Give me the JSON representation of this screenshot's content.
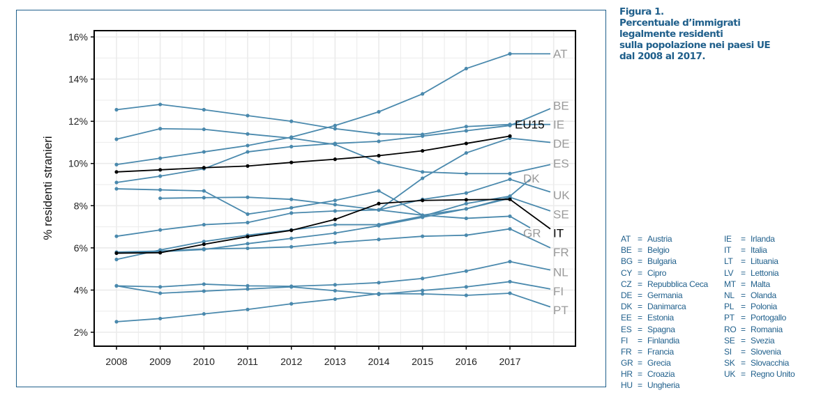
{
  "caption": {
    "lines": [
      "Figura 1.",
      "Percentuale d’immigrati",
      "legalmente residenti",
      "sulla popolazione nei paesi UE",
      "dal 2008 al 2017."
    ]
  },
  "legend": {
    "col1": [
      {
        "code": "AT",
        "name": "Austria"
      },
      {
        "code": "BE",
        "name": "Belgio"
      },
      {
        "code": "BG",
        "name": "Bulgaria"
      },
      {
        "code": "CY",
        "name": "Cipro"
      },
      {
        "code": "CZ",
        "name": "Repubblica Ceca"
      },
      {
        "code": "DE",
        "name": "Germania"
      },
      {
        "code": "DK",
        "name": "Danimarca"
      },
      {
        "code": "EE",
        "name": "Estonia"
      },
      {
        "code": "ES",
        "name": "Spagna"
      },
      {
        "code": "FI",
        "name": "Finlandia"
      },
      {
        "code": "FR",
        "name": "Francia"
      },
      {
        "code": "GR",
        "name": "Grecia"
      },
      {
        "code": "HR",
        "name": "Croazia"
      },
      {
        "code": "HU",
        "name": "Ungheria"
      }
    ],
    "col2": [
      {
        "code": "IE",
        "name": "Irlanda"
      },
      {
        "code": "IT",
        "name": "Italia"
      },
      {
        "code": "LT",
        "name": "Lituania"
      },
      {
        "code": "LV",
        "name": "Lettonia"
      },
      {
        "code": "MT",
        "name": "Malta"
      },
      {
        "code": "NL",
        "name": "Olanda"
      },
      {
        "code": "PL",
        "name": "Polonia"
      },
      {
        "code": "PT",
        "name": "Portogallo"
      },
      {
        "code": "RO",
        "name": "Romania"
      },
      {
        "code": "SE",
        "name": "Svezia"
      },
      {
        "code": "SI",
        "name": "Slovenia"
      },
      {
        "code": "SK",
        "name": "Slovacchia"
      },
      {
        "code": "UK",
        "name": "Regno Unito"
      }
    ],
    "separator": "="
  },
  "colors": {
    "series": "#4a89ad",
    "highlight": "#000000",
    "label_gray": "#9a9a9a",
    "frame": "#1f5f8b",
    "grid": "#ebebeb"
  },
  "chart_data": {
    "type": "line",
    "title": "Percentuale d’immigrati legalmente residenti sulla popolazione nei paesi UE dal 2008 al 2017",
    "xlabel": "",
    "ylabel": "% residenti stranieri",
    "x": [
      2008,
      2009,
      2010,
      2011,
      2012,
      2013,
      2014,
      2015,
      2016,
      2017
    ],
    "xticks": [
      "2008",
      "2009",
      "2010",
      "2011",
      "2012",
      "2013",
      "2014",
      "2015",
      "2016",
      "2017"
    ],
    "yticks": [
      "2%",
      "4%",
      "6%",
      "8%",
      "10%",
      "12%",
      "14%",
      "16%"
    ],
    "ytick_values": [
      2,
      4,
      6,
      8,
      10,
      12,
      14,
      16
    ],
    "ylim": [
      1.3,
      16.3
    ],
    "grid": true,
    "legend": "direct-labels-right",
    "series": [
      {
        "name": "AT",
        "values": [
          9.95,
          10.25,
          10.55,
          10.85,
          11.25,
          11.8,
          12.45,
          13.3,
          14.5,
          15.2
        ],
        "label_value": 15.2,
        "highlight": false
      },
      {
        "name": "BE",
        "values": [
          9.1,
          9.4,
          9.75,
          10.55,
          10.8,
          10.95,
          11.05,
          11.3,
          11.55,
          11.8
        ],
        "label_value": 12.6,
        "highlight": false
      },
      {
        "name": "IE",
        "values": [
          12.55,
          12.8,
          12.55,
          12.27,
          12.0,
          11.65,
          11.4,
          11.38,
          11.75,
          11.85
        ],
        "label_value": 11.85,
        "highlight": false
      },
      {
        "name": "DE",
        "values": [
          null,
          null,
          null,
          null,
          null,
          null,
          7.8,
          9.3,
          10.5,
          11.2
        ],
        "label_value": 11.0,
        "highlight": false
      },
      {
        "name": "ES",
        "values": [
          11.15,
          11.65,
          11.62,
          11.4,
          11.2,
          10.9,
          10.05,
          9.6,
          9.52,
          9.52
        ],
        "label_value": 9.95,
        "highlight": false
      },
      {
        "name": "UK",
        "values": [
          6.55,
          6.85,
          7.1,
          7.2,
          7.65,
          7.75,
          7.8,
          8.3,
          8.6,
          9.25
        ],
        "label_value": 8.65,
        "highlight": false
      },
      {
        "name": "DK",
        "values": [
          5.45,
          5.9,
          6.3,
          6.6,
          6.85,
          7.1,
          7.1,
          7.5,
          8.1,
          8.45
        ],
        "label_value": 9.25,
        "highlight": false
      },
      {
        "name": "SE",
        "values": [
          null,
          8.35,
          8.38,
          8.4,
          8.3,
          8.05,
          7.8,
          7.55,
          7.85,
          8.4
        ],
        "label_value": 7.75,
        "highlight": false
      },
      {
        "name": "GR",
        "values": [
          8.8,
          8.75,
          8.7,
          7.6,
          7.9,
          8.25,
          8.7,
          7.55,
          7.4,
          7.5
        ],
        "label_value": 6.95,
        "highlight": false
      },
      {
        "name": "FR",
        "values": [
          5.8,
          5.85,
          5.95,
          5.98,
          6.05,
          6.25,
          6.4,
          6.55,
          6.6,
          6.9
        ],
        "label_value": 6.0,
        "highlight": false
      },
      {
        "name": "NL",
        "values": [
          4.2,
          4.15,
          4.28,
          4.2,
          4.18,
          4.25,
          4.35,
          4.55,
          4.9,
          5.35
        ],
        "label_value": 4.95,
        "highlight": false
      },
      {
        "name": "FI",
        "values": [
          4.2,
          3.85,
          3.95,
          4.05,
          4.15,
          3.97,
          3.8,
          3.98,
          4.15,
          4.4
        ],
        "label_value": 4.05,
        "highlight": false
      },
      {
        "name": "PT",
        "values": [
          2.5,
          2.65,
          2.87,
          3.08,
          3.35,
          3.57,
          3.83,
          3.82,
          3.75,
          3.85
        ],
        "label_value": 3.2,
        "highlight": false
      },
      {
        "name": "CZ",
        "values": [
          5.75,
          5.82,
          5.92,
          6.2,
          6.45,
          6.7,
          7.05,
          7.45,
          7.85,
          8.35
        ],
        "label_value": null,
        "highlight": false
      },
      {
        "name": "EU15",
        "values": [
          9.6,
          9.7,
          9.8,
          9.88,
          10.05,
          10.2,
          10.37,
          10.6,
          10.95,
          11.3
        ],
        "label_value": null,
        "label_at": 11.8,
        "highlight": true
      },
      {
        "name": "IT",
        "values": [
          5.75,
          5.77,
          6.17,
          6.53,
          6.83,
          7.35,
          8.1,
          8.25,
          8.28,
          8.3
        ],
        "label_value": 6.9,
        "highlight": true
      }
    ],
    "labels": [
      {
        "text": "AT",
        "value": 15.2,
        "column": "right"
      },
      {
        "text": "BE",
        "value": 12.75,
        "column": "right"
      },
      {
        "text": "EU15",
        "value": 11.85,
        "column": "mid",
        "highlight": true
      },
      {
        "text": "IE",
        "value": 11.85,
        "column": "right"
      },
      {
        "text": "DE",
        "value": 10.95,
        "column": "right"
      },
      {
        "text": "ES",
        "value": 10.0,
        "column": "right"
      },
      {
        "text": "DK",
        "value": 9.3,
        "column": "mid"
      },
      {
        "text": "UK",
        "value": 8.5,
        "column": "right"
      },
      {
        "text": "SE",
        "value": 7.6,
        "column": "right"
      },
      {
        "text": "GR",
        "value": 6.7,
        "column": "mid"
      },
      {
        "text": "IT",
        "value": 6.7,
        "column": "right",
        "highlight": true
      },
      {
        "text": "FR",
        "value": 5.8,
        "column": "right"
      },
      {
        "text": "NL",
        "value": 4.85,
        "column": "right"
      },
      {
        "text": "FI",
        "value": 3.95,
        "column": "right"
      },
      {
        "text": "PT",
        "value": 3.05,
        "column": "right"
      }
    ]
  }
}
